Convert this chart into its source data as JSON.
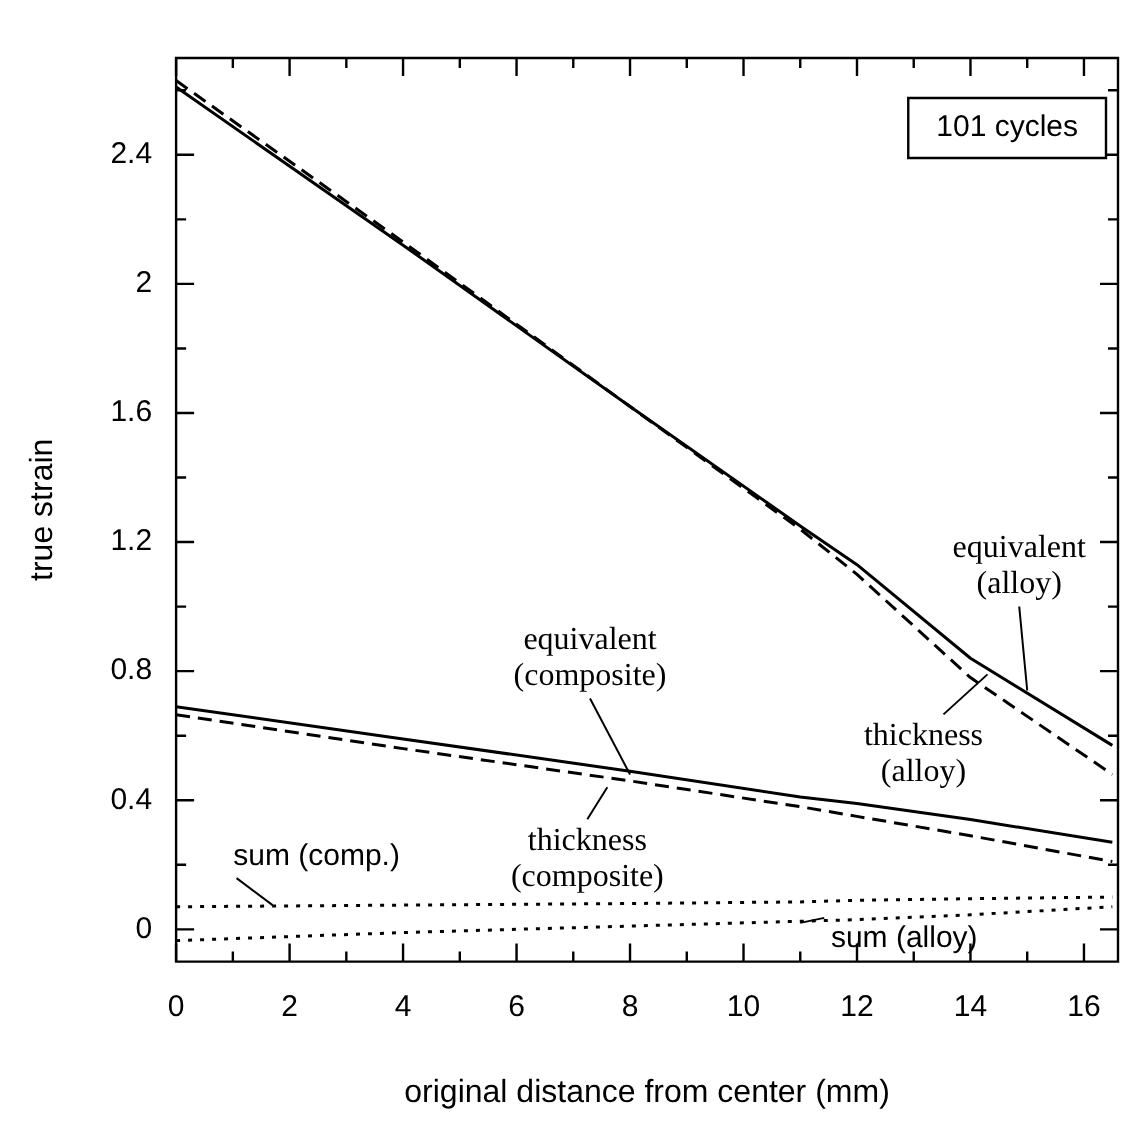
{
  "chart_data": {
    "type": "line",
    "xlabel": "original distance from center (mm)",
    "ylabel": "true strain",
    "x": [
      0,
      4,
      8,
      11,
      12,
      14,
      16.5
    ],
    "series": [
      {
        "color": "#000000",
        "line_style": "solid",
        "values": [
          2.61,
          2.12,
          1.62,
          1.25,
          1.13,
          0.84,
          0.57
        ]
      },
      {
        "color": "#000000",
        "line_style": "dashed",
        "values": [
          2.63,
          2.13,
          1.62,
          1.24,
          1.1,
          0.78,
          0.48
        ]
      },
      {
        "color": "#000000",
        "line_style": "solid",
        "values": [
          0.69,
          0.59,
          0.49,
          0.41,
          0.39,
          0.34,
          0.27
        ]
      },
      {
        "color": "#000000",
        "line_style": "dashed",
        "values": [
          0.665,
          0.56,
          0.46,
          0.38,
          0.35,
          0.29,
          0.21
        ]
      },
      {
        "color": "#000000",
        "line_style": "dotted",
        "values": [
          0.07,
          0.075,
          0.08,
          0.085,
          0.09,
          0.095,
          0.1
        ]
      },
      {
        "color": "#000000",
        "line_style": "dotted",
        "values": [
          -0.035,
          -0.01,
          0.01,
          0.025,
          0.03,
          0.045,
          0.07
        ]
      }
    ],
    "xlim": [
      0,
      16.6
    ],
    "ylim": [
      -0.1,
      2.7
    ],
    "xticks": [
      0,
      {
        "value": 1,
        "label": null
      },
      2,
      {
        "value": 3,
        "label": null
      },
      4,
      {
        "value": 5,
        "label": null
      },
      6,
      {
        "value": 7,
        "label": null
      },
      8,
      {
        "value": 9,
        "label": null
      },
      10,
      {
        "value": 11,
        "label": null
      },
      12,
      {
        "value": 13,
        "label": null
      },
      14,
      {
        "value": 15,
        "label": null
      },
      16
    ],
    "yticks": [
      0,
      {
        "value": 0.2,
        "label": null
      },
      0.4,
      {
        "value": 0.6,
        "label": null
      },
      0.8,
      {
        "value": 1,
        "label": null
      },
      1.2,
      {
        "value": 1.4,
        "label": null
      },
      1.6,
      {
        "value": 1.8,
        "label": null
      },
      2,
      {
        "value": 2.2,
        "label": null
      },
      2.4,
      {
        "value": 2.6,
        "label": null
      }
    ],
    "grid": false,
    "legend": false,
    "marker": "none",
    "annotations": [
      "101 cycles",
      {
        "text": "equivalent\n(alloy)",
        "x": 15,
        "y": 0.74
      },
      {
        "text": "thickness\n(alloy)",
        "x": 14.3,
        "y": 0.79
      },
      {
        "text": "equivalent\n(composite)",
        "x": 8,
        "y": 0.48
      },
      {
        "text": "thickness\n(composite)",
        "x": 7.6,
        "y": 0.44
      },
      {
        "text": "sum (comp.)",
        "x": 1.7,
        "y": 0.075
      },
      {
        "text": "sum (alloy)",
        "x": 11,
        "y": 0.02
      }
    ]
  }
}
